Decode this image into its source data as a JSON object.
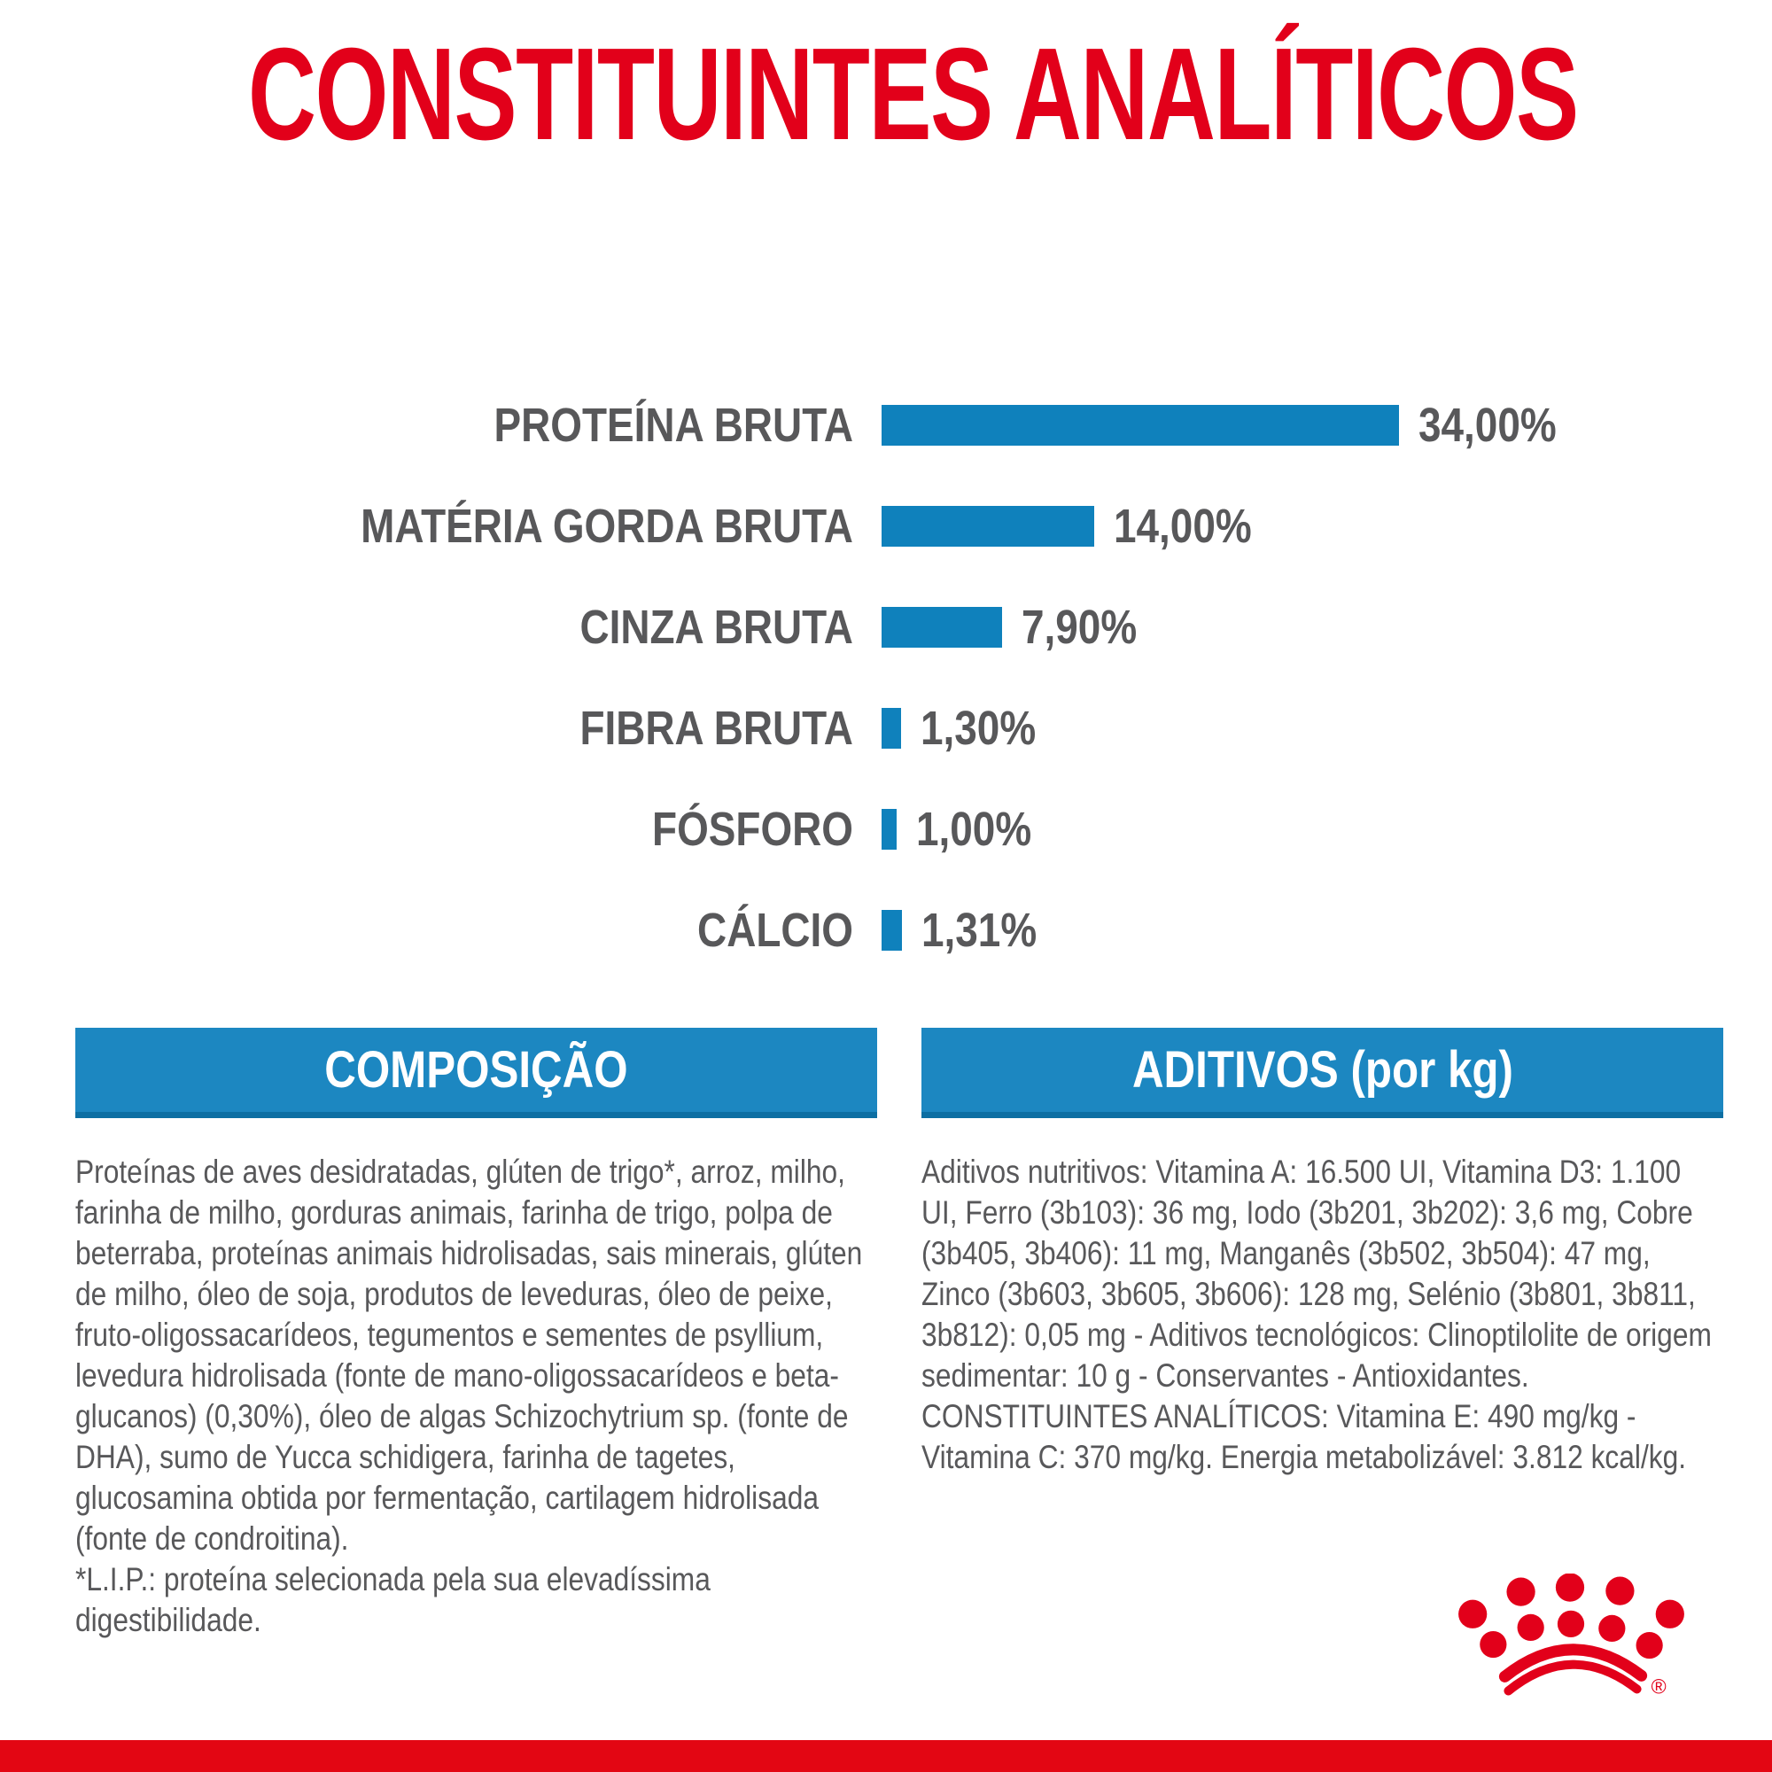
{
  "page": {
    "title": "CONSTITUINTES ANALÍTICOS"
  },
  "chart_data": {
    "type": "bar",
    "orientation": "horizontal",
    "title": "CONSTITUINTES ANALÍTICOS",
    "categories": [
      "PROTEÍNA BRUTA",
      "MATÉRIA GORDA BRUTA",
      "CINZA BRUTA",
      "FIBRA BRUTA",
      "FÓSFORO",
      "CÁLCIO"
    ],
    "values": [
      34.0,
      14.0,
      7.9,
      1.3,
      1.0,
      1.31
    ],
    "value_labels": [
      "34,00%",
      "14,00%",
      "7,90%",
      "1,30%",
      "1,00%",
      "1,31%"
    ],
    "unit": "%",
    "xlim": [
      0,
      34
    ],
    "grid": false,
    "legend": false,
    "bar_color": "#0F81BC",
    "label_color": "#58585A"
  },
  "sections": {
    "composicao": {
      "header": "COMPOSIÇÃO",
      "body": "Proteínas de aves desidratadas, glúten de trigo*, arroz, milho, farinha de milho, gorduras animais, farinha de trigo, polpa de beterraba, proteínas animais hidrolisadas, sais minerais, glúten de milho, óleo de soja, produtos de leveduras, óleo de peixe, fruto-oligossacarídeos, tegumentos e sementes de psyllium, levedura hidrolisada (fonte de mano-oligossacarídeos e beta-glucanos) (0,30%), óleo de algas Schizochytrium sp. (fonte de DHA), sumo de Yucca schidigera, farinha de tagetes, glucosamina obtida por fermentação, cartilagem hidrolisada (fonte de condroitina).",
      "footnote": "*L.I.P.: proteína selecionada pela sua elevadíssima digestibilidade."
    },
    "aditivos": {
      "header": "ADITIVOS (por kg)",
      "body": "Aditivos nutritivos: Vitamina A: 16.500 UI, Vitamina D3: 1.100 UI, Ferro (3b103): 36 mg, Iodo (3b201, 3b202): 3,6 mg, Cobre (3b405, 3b406): 11 mg, Manganês (3b502, 3b504): 47 mg, Zinco (3b603, 3b605, 3b606): 128 mg, Selénio (3b801, 3b811, 3b812): 0,05 mg - Aditivos tecnológicos: Clinoptilolite de origem sedimentar: 10 g - Conservantes - Antioxidantes. CONSTITUINTES ANALÍTICOS: Vitamina E: 490 mg/kg - Vitamina C: 370 mg/kg. Energia metabolizável: 3.812 kcal/kg."
    }
  },
  "branding": {
    "logo": "royal-canin-crown",
    "logo_color": "#E2001A"
  },
  "colors": {
    "title_red": "#E2001A",
    "footer_red": "#E30613",
    "header_box_blue": "#1C87C1",
    "header_box_edge_blue": "#0D6FA3",
    "bar_blue": "#0F81BC",
    "text_gray": "#58585A",
    "header_text": "#FFFFFF"
  }
}
